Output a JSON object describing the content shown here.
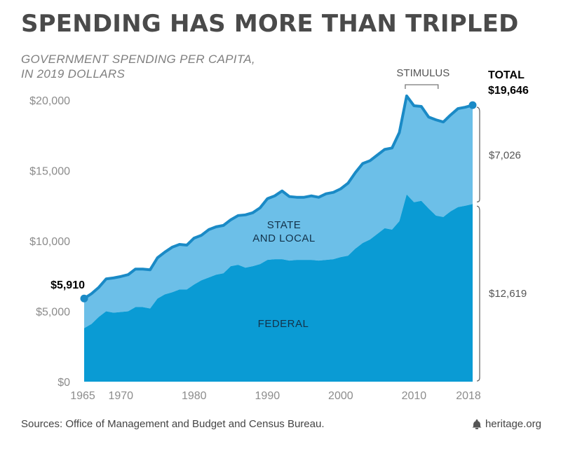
{
  "header": {
    "title": "SPENDING HAS MORE THAN TRIPLED",
    "subtitle_line1": "GOVERNMENT SPENDING PER CAPITA,",
    "subtitle_line2": "IN 2019 DOLLARS"
  },
  "footer": {
    "sources": "Sources: Office of Management and Budget and Census Bureau.",
    "brand": "heritage.org",
    "brand_icon": "heritage-bell-icon"
  },
  "colors": {
    "federal": "#0a9bd4",
    "state_local": "#6cbfe8",
    "total_line": "#1a8ac6",
    "axis_text": "#8c8c8c"
  },
  "chart_data": {
    "type": "area",
    "stacked": true,
    "xlabel": "",
    "ylabel": "",
    "xlim": [
      1965,
      2018
    ],
    "ylim": [
      0,
      20000
    ],
    "x_ticks": [
      1965,
      1970,
      1980,
      1990,
      2000,
      2010,
      2018
    ],
    "x_tick_labels": [
      "1965",
      "1970",
      "1980",
      "1990",
      "2000",
      "2010",
      "2018"
    ],
    "y_ticks": [
      0,
      5000,
      10000,
      15000,
      20000
    ],
    "y_tick_labels": [
      "$0",
      "$5,000",
      "$10,000",
      "$15,000",
      "$20,000"
    ],
    "grid": false,
    "x": [
      1965,
      1966,
      1967,
      1968,
      1969,
      1970,
      1971,
      1972,
      1973,
      1974,
      1975,
      1976,
      1977,
      1978,
      1979,
      1980,
      1981,
      1982,
      1983,
      1984,
      1985,
      1986,
      1987,
      1988,
      1989,
      1990,
      1991,
      1992,
      1993,
      1994,
      1995,
      1996,
      1997,
      1998,
      1999,
      2000,
      2001,
      2002,
      2003,
      2004,
      2005,
      2006,
      2007,
      2008,
      2009,
      2010,
      2011,
      2012,
      2013,
      2014,
      2015,
      2016,
      2017,
      2018
    ],
    "series": [
      {
        "name": "FEDERAL",
        "values": [
          3800,
          4100,
          4600,
          5000,
          4900,
          4950,
          5000,
          5300,
          5300,
          5200,
          5900,
          6200,
          6350,
          6550,
          6550,
          6900,
          7200,
          7400,
          7600,
          7700,
          8200,
          8300,
          8100,
          8200,
          8350,
          8650,
          8700,
          8700,
          8600,
          8650,
          8650,
          8650,
          8600,
          8650,
          8700,
          8850,
          8950,
          9450,
          9850,
          10100,
          10500,
          10900,
          10800,
          11400,
          13300,
          12750,
          12850,
          12300,
          11800,
          11700,
          12100,
          12400,
          12500,
          12619
        ]
      },
      {
        "name": "STATE AND LOCAL",
        "values": [
          2110,
          2150,
          2100,
          2300,
          2470,
          2520,
          2600,
          2700,
          2700,
          2750,
          2900,
          3000,
          3200,
          3200,
          3150,
          3300,
          3200,
          3400,
          3400,
          3400,
          3300,
          3500,
          3750,
          3800,
          4000,
          4350,
          4500,
          4850,
          4550,
          4450,
          4450,
          4550,
          4500,
          4700,
          4750,
          4850,
          5150,
          5400,
          5650,
          5600,
          5600,
          5600,
          5800,
          6300,
          7000,
          6850,
          6700,
          6500,
          6800,
          6750,
          6850,
          7000,
          7000,
          7026
        ]
      }
    ],
    "total_values": [
      5910,
      6250,
      6700,
      7300,
      7370,
      7470,
      7600,
      8000,
      8000,
      7950,
      8800,
      9200,
      9550,
      9750,
      9700,
      10200,
      10400,
      10800,
      11000,
      11100,
      11500,
      11800,
      11850,
      12000,
      12350,
      13000,
      13200,
      13550,
      13150,
      13100,
      13100,
      13200,
      13100,
      13350,
      13450,
      13700,
      14100,
      14850,
      15500,
      15700,
      16100,
      16500,
      16600,
      17700,
      20300,
      19600,
      19550,
      18800,
      18600,
      18450,
      18950,
      19400,
      19500,
      19646
    ],
    "annotations": {
      "start_value": "$5,910",
      "end_total_label": "TOTAL",
      "end_total_value": "$19,646",
      "state_local_2018": "$7,026",
      "federal_2018": "$12,619",
      "stimulus": "STIMULUS",
      "stimulus_range": [
        2009,
        2013
      ],
      "state_label_line1": "STATE",
      "state_label_line2": "AND LOCAL",
      "federal_label": "FEDERAL"
    }
  }
}
